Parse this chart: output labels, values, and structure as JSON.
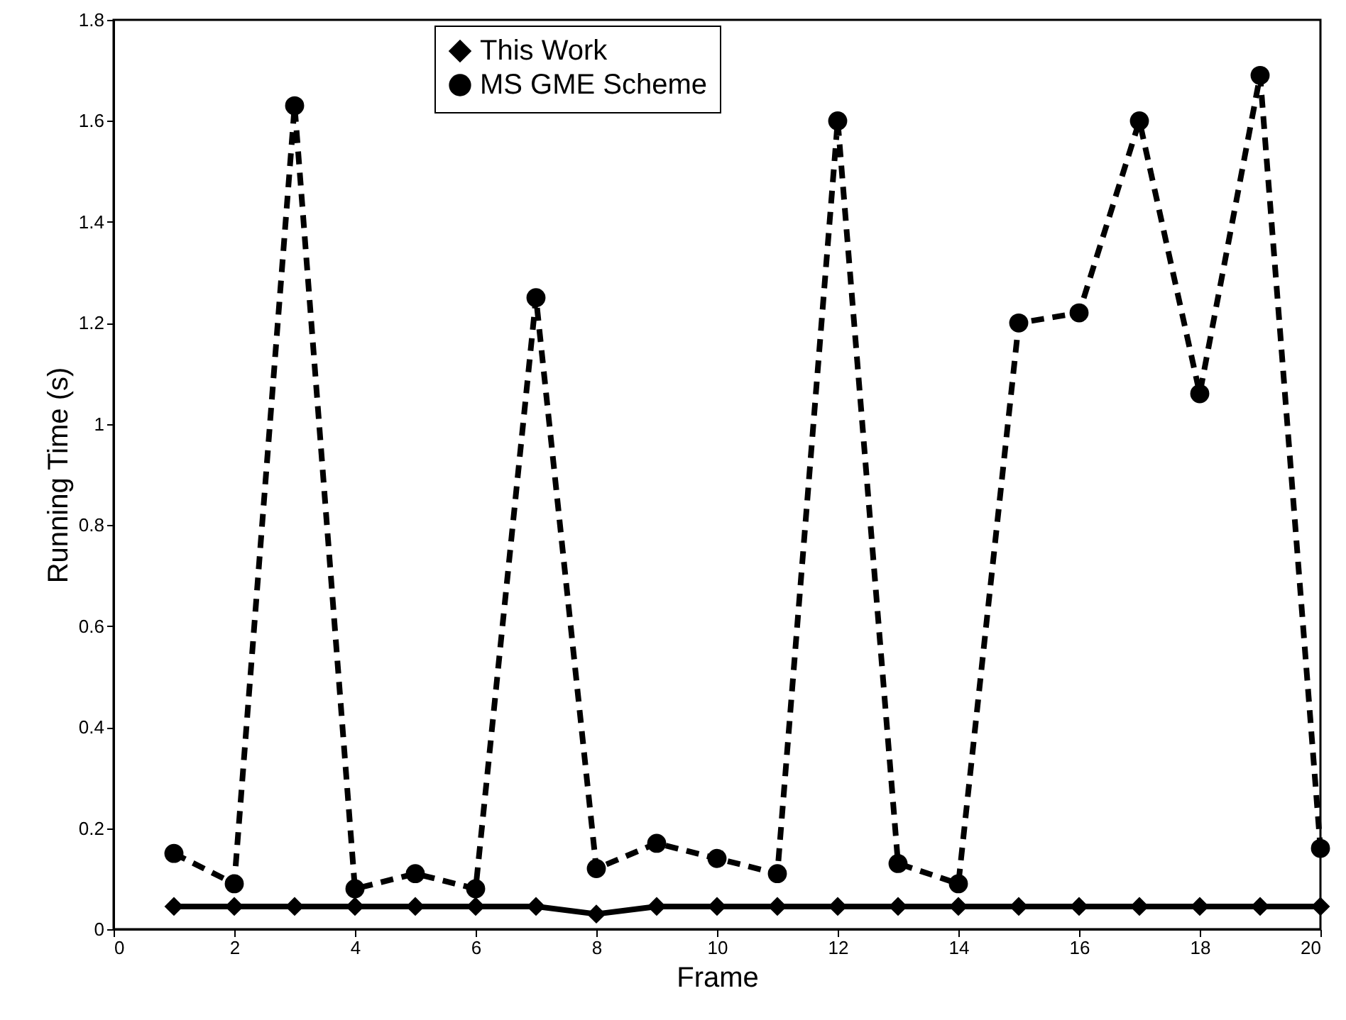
{
  "chart_data": {
    "type": "line",
    "xlabel": "Frame",
    "ylabel": "Running Time (s)",
    "x": [
      1,
      2,
      3,
      4,
      5,
      6,
      7,
      8,
      9,
      10,
      11,
      12,
      13,
      14,
      15,
      16,
      17,
      18,
      19,
      20
    ],
    "series": [
      {
        "name": "This Work",
        "color": "#000000",
        "marker": "diamond",
        "line_style": "solid",
        "values": [
          0.045,
          0.045,
          0.045,
          0.045,
          0.045,
          0.045,
          0.045,
          0.03,
          0.045,
          0.045,
          0.045,
          0.045,
          0.045,
          0.045,
          0.045,
          0.045,
          0.045,
          0.045,
          0.045,
          0.045
        ]
      },
      {
        "name": "MS GME Scheme",
        "color": "#000000",
        "marker": "circle",
        "line_style": "dashed",
        "values": [
          0.15,
          0.09,
          1.63,
          0.08,
          0.11,
          0.08,
          1.25,
          0.12,
          0.17,
          0.14,
          0.11,
          1.6,
          0.13,
          0.09,
          1.2,
          1.22,
          1.6,
          1.06,
          1.69,
          0.16
        ]
      }
    ],
    "xlim": [
      0,
      20
    ],
    "xticks": [
      0,
      2,
      4,
      6,
      8,
      10,
      12,
      14,
      16,
      18,
      20
    ],
    "ylim": [
      0,
      1.8
    ],
    "yticks": [
      0,
      0.2,
      0.4,
      0.6,
      0.8,
      1,
      1.2,
      1.4,
      1.6,
      1.8
    ],
    "grid": false,
    "legend": "top"
  }
}
